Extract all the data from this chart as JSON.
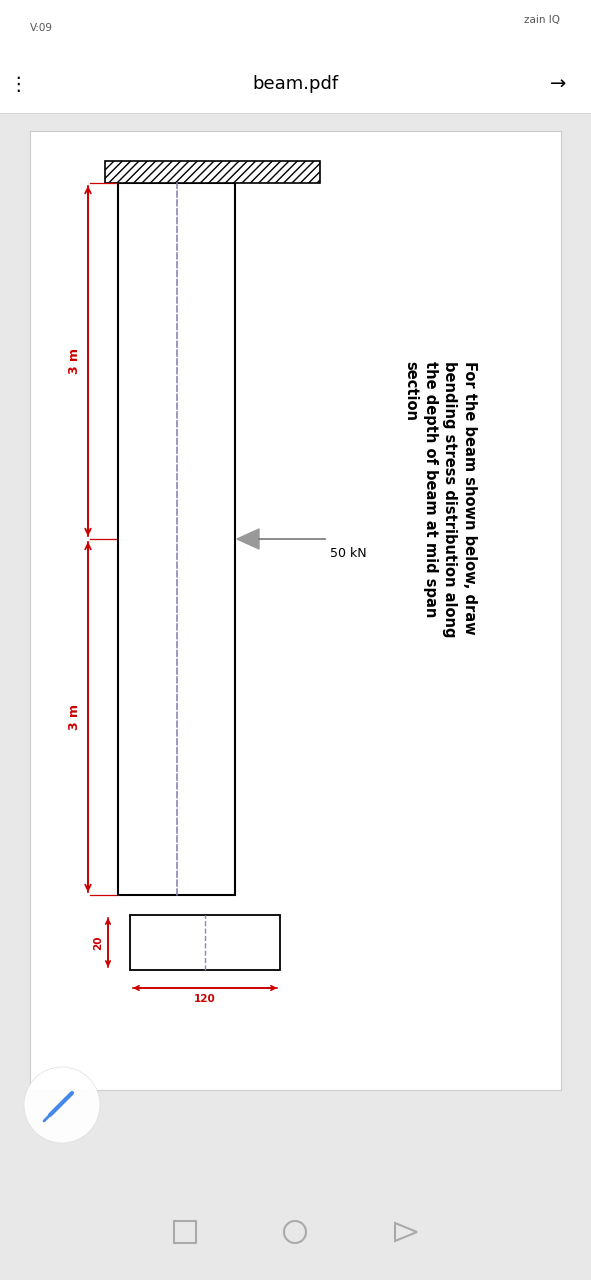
{
  "bg_color": "#e8e8e8",
  "page_bg": "#ffffff",
  "status_bar_color": "#ffffff",
  "nav_bar_color": "#e8e8e8",
  "toolbar_color": "#ffffff",
  "title_text": "For the beam shown below, draw\nbending stress distribution along\nthe depth of beam at mid span\nsection",
  "toolbar_title": "beam.pdf",
  "load_label": "50 kN",
  "dim1_label": "3 m",
  "dim2_label": "3 m",
  "cs_width_label": "120",
  "cs_height_label": "20",
  "beam_color": "#000000",
  "dim_color": "#cc0000",
  "centerline_color": "#8888bb",
  "arrow_fill_color": "#999999",
  "hatch_pattern": "////"
}
